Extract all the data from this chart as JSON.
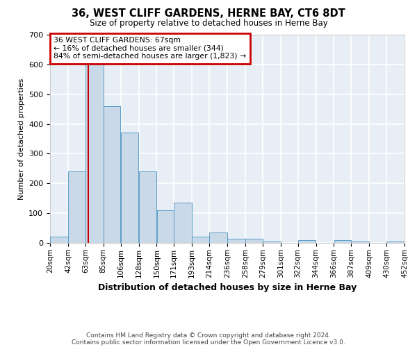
{
  "title": "36, WEST CLIFF GARDENS, HERNE BAY, CT6 8DT",
  "subtitle": "Size of property relative to detached houses in Herne Bay",
  "xlabel": "Distribution of detached houses by size in Herne Bay",
  "ylabel": "Number of detached properties",
  "bar_color": "#c9d9e8",
  "bar_edge_color": "#5a9ec8",
  "background_color": "#e8eef5",
  "grid_color": "#ffffff",
  "annotation_box_color": "#cc0000",
  "property_line_color": "#cc0000",
  "annotation_line1": "36 WEST CLIFF GARDENS: 67sqm",
  "annotation_line2": "← 16% of detached houses are smaller (344)",
  "annotation_line3": "84% of semi-detached houses are larger (1,823) →",
  "property_value": 67,
  "bin_edges": [
    20,
    42,
    63,
    85,
    106,
    128,
    150,
    171,
    193,
    214,
    236,
    258,
    279,
    301,
    322,
    344,
    366,
    387,
    409,
    430,
    452
  ],
  "bar_heights": [
    20,
    240,
    630,
    460,
    370,
    240,
    110,
    135,
    20,
    35,
    15,
    15,
    5,
    0,
    10,
    0,
    10,
    5,
    0,
    5
  ],
  "ylim": [
    0,
    700
  ],
  "yticks": [
    0,
    100,
    200,
    300,
    400,
    500,
    600,
    700
  ],
  "footnote_line1": "Contains HM Land Registry data © Crown copyright and database right 2024.",
  "footnote_line2": "Contains public sector information licensed under the Open Government Licence v3.0."
}
